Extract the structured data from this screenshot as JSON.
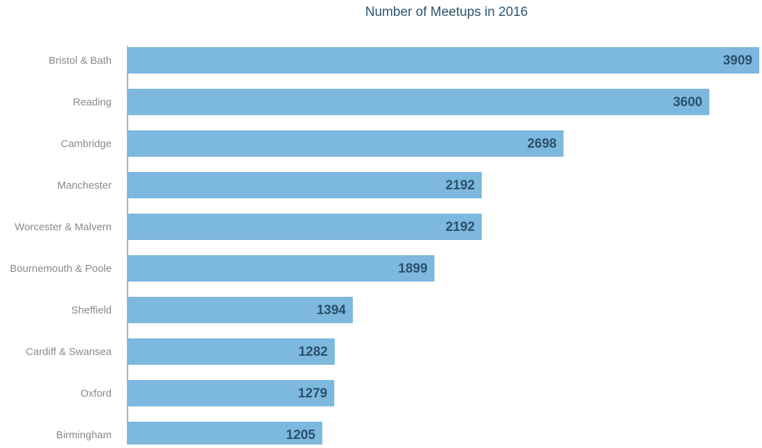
{
  "chart_data": {
    "type": "hbar",
    "title": "Number of Meetups in 2016",
    "categories": [
      "Bristol & Bath",
      "Reading",
      "Cambridge",
      "Manchester",
      "Worcester & Malvern",
      "Bournemouth & Poole",
      "Sheffield",
      "Cardiff & Swansea",
      "Oxford",
      "Birmingham"
    ],
    "values": [
      3909,
      3600,
      2698,
      2192,
      2192,
      1899,
      1394,
      1282,
      1279,
      1205
    ],
    "color": "#7db8de",
    "xlim": [
      0,
      3909
    ]
  }
}
